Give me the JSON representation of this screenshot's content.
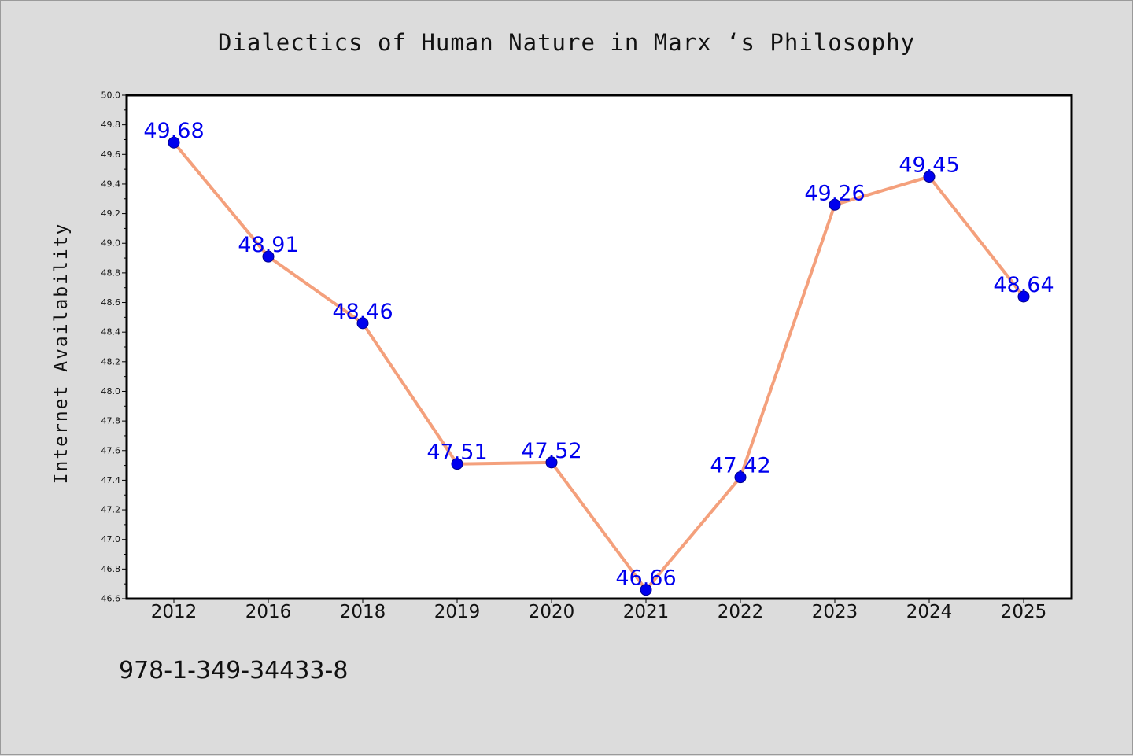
{
  "chart_data": {
    "type": "line",
    "title": "Dialectics of Human Nature in Marx ‘s Philosophy",
    "xlabel": "",
    "ylabel": "Internet Availability",
    "categories": [
      "2012",
      "2016",
      "2018",
      "2019",
      "2020",
      "2021",
      "2022",
      "2023",
      "2024",
      "2025"
    ],
    "series": [
      {
        "values": [
          49.68,
          48.91,
          48.46,
          47.51,
          47.52,
          46.66,
          47.42,
          49.26,
          49.45,
          48.64
        ],
        "labels": [
          "49.68",
          "48.91",
          "48.46",
          "47.51",
          "47.52",
          "46.66",
          "47.42",
          "49.26",
          "49.45",
          "48.64"
        ],
        "line_color": "#f4a07c",
        "marker_color": "#0000ee",
        "label_color": "#0000ee"
      }
    ],
    "ylim": [
      46.6,
      50.0
    ],
    "yticks": [
      "46.6",
      "46.8",
      "47.0",
      "47.2",
      "47.4",
      "47.6",
      "47.8",
      "48.0",
      "48.2",
      "48.4",
      "48.6",
      "48.8",
      "49.0",
      "49.2",
      "49.4",
      "49.6",
      "49.8",
      "50.0"
    ],
    "grid": false,
    "legend": "none"
  },
  "footer": {
    "isbn": "978-1-349-34433-8"
  }
}
